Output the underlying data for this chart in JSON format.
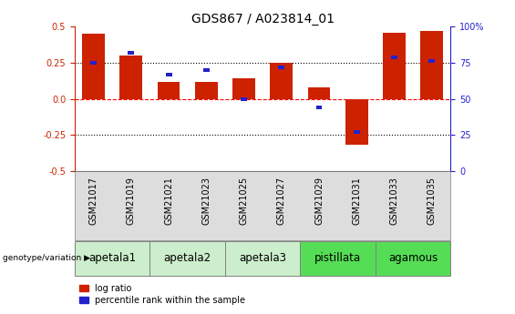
{
  "title": "GDS867 / A023814_01",
  "samples": [
    "GSM21017",
    "GSM21019",
    "GSM21021",
    "GSM21023",
    "GSM21025",
    "GSM21027",
    "GSM21029",
    "GSM21031",
    "GSM21033",
    "GSM21035"
  ],
  "log_ratio": [
    0.45,
    0.3,
    0.12,
    0.12,
    0.14,
    0.25,
    0.08,
    -0.32,
    0.46,
    0.47
  ],
  "percentile_rank": [
    75,
    82,
    67,
    70,
    50,
    72,
    44,
    27,
    79,
    76
  ],
  "groups": [
    {
      "label": "apetala1",
      "indices": [
        0,
        1
      ],
      "color": "#cceecc"
    },
    {
      "label": "apetala2",
      "indices": [
        2,
        3
      ],
      "color": "#cceecc"
    },
    {
      "label": "apetala3",
      "indices": [
        4,
        5
      ],
      "color": "#cceecc"
    },
    {
      "label": "pistillata",
      "indices": [
        6,
        7
      ],
      "color": "#55dd55"
    },
    {
      "label": "agamous",
      "indices": [
        8,
        9
      ],
      "color": "#55dd55"
    }
  ],
  "bar_color_red": "#cc2200",
  "bar_color_blue": "#2222cc",
  "ylim_left": [
    -0.5,
    0.5
  ],
  "ylim_right": [
    0,
    100
  ],
  "yticks_left": [
    -0.5,
    -0.25,
    0.0,
    0.25,
    0.5
  ],
  "yticks_right": [
    0,
    25,
    50,
    75,
    100
  ],
  "hlines": [
    0.25,
    0.0,
    -0.25
  ],
  "hline_styles": [
    "dotted",
    "dashed",
    "dotted"
  ],
  "hline_colors": [
    "black",
    "red",
    "black"
  ],
  "title_fontsize": 10,
  "tick_fontsize": 7,
  "group_label_fontsize": 8.5,
  "bar_width": 0.6,
  "blue_marker_size": 0.025
}
